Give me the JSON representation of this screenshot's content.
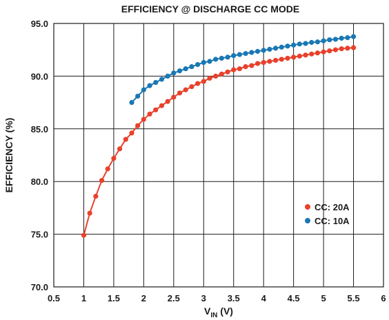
{
  "chart_data": {
    "type": "line",
    "title": "EFFICIENCY @ DISCHARGE CC MODE",
    "xlabel_main": "V",
    "xlabel_sub": "IN",
    "xlabel_unit": " (V)",
    "ylabel": "EFFICIENCY (%)",
    "xlim": [
      0.5,
      6
    ],
    "ylim": [
      70,
      95
    ],
    "xticks": [
      0.5,
      1,
      1.5,
      2,
      2.5,
      3,
      3.5,
      4,
      4.5,
      5,
      5.5,
      6
    ],
    "xtick_labels": [
      "0.5",
      "1",
      "1.5",
      "2",
      "2.5",
      "3",
      "3.5",
      "4",
      "4.5",
      "5",
      "5.5",
      "6"
    ],
    "yticks": [
      70,
      75,
      80,
      85,
      90,
      95
    ],
    "ytick_labels": [
      "70.0",
      "75.0",
      "80.0",
      "85.0",
      "90.0",
      "95.0"
    ],
    "grid": true,
    "legend_position": "lower-right",
    "series": [
      {
        "name": "CC: 20A",
        "color": "#e8412c",
        "x": [
          1.0,
          1.1,
          1.2,
          1.3,
          1.4,
          1.5,
          1.6,
          1.7,
          1.8,
          1.9,
          2.0,
          2.1,
          2.2,
          2.3,
          2.4,
          2.5,
          2.6,
          2.7,
          2.8,
          2.9,
          3.0,
          3.1,
          3.2,
          3.3,
          3.4,
          3.5,
          3.6,
          3.7,
          3.8,
          3.9,
          4.0,
          4.1,
          4.2,
          4.3,
          4.4,
          4.5,
          4.6,
          4.7,
          4.8,
          4.9,
          5.0,
          5.1,
          5.2,
          5.3,
          5.4,
          5.5
        ],
        "y": [
          74.9,
          77.0,
          78.6,
          80.1,
          81.2,
          82.2,
          83.1,
          84.0,
          84.6,
          85.3,
          85.9,
          86.4,
          86.8,
          87.2,
          87.6,
          88.0,
          88.4,
          88.7,
          89.0,
          89.3,
          89.5,
          89.8,
          90.0,
          90.2,
          90.4,
          90.6,
          90.7,
          90.9,
          91.0,
          91.2,
          91.3,
          91.4,
          91.5,
          91.6,
          91.7,
          91.8,
          91.9,
          92.0,
          92.1,
          92.2,
          92.3,
          92.4,
          92.5,
          92.6,
          92.65,
          92.7
        ]
      },
      {
        "name": "CC: 10A",
        "color": "#1a78b4",
        "x": [
          1.8,
          1.9,
          2.0,
          2.1,
          2.2,
          2.3,
          2.4,
          2.5,
          2.6,
          2.7,
          2.8,
          2.9,
          3.0,
          3.1,
          3.2,
          3.3,
          3.4,
          3.5,
          3.6,
          3.7,
          3.8,
          3.9,
          4.0,
          4.1,
          4.2,
          4.3,
          4.4,
          4.5,
          4.6,
          4.7,
          4.8,
          4.9,
          5.0,
          5.1,
          5.2,
          5.3,
          5.4,
          5.5
        ],
        "y": [
          87.5,
          88.1,
          88.7,
          89.1,
          89.4,
          89.7,
          90.0,
          90.3,
          90.5,
          90.7,
          90.9,
          91.1,
          91.3,
          91.4,
          91.6,
          91.7,
          91.8,
          91.95,
          92.05,
          92.15,
          92.25,
          92.35,
          92.45,
          92.55,
          92.65,
          92.75,
          92.85,
          92.95,
          93.05,
          93.1,
          93.2,
          93.25,
          93.35,
          93.45,
          93.5,
          93.6,
          93.65,
          93.75
        ]
      }
    ]
  }
}
